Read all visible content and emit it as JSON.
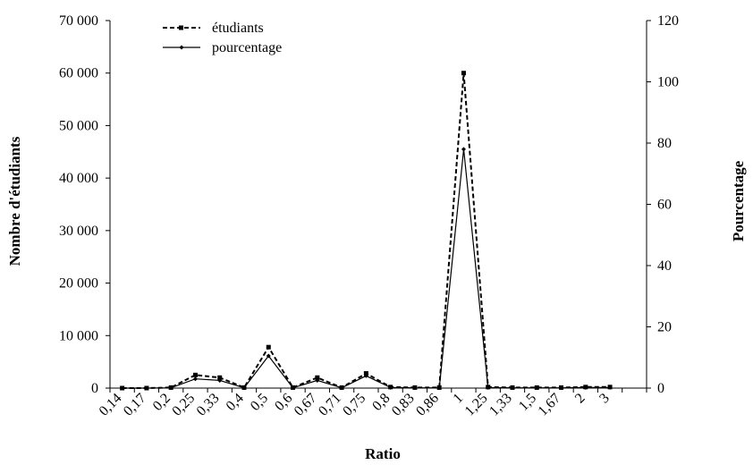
{
  "chart_data": {
    "type": "line",
    "categories": [
      "0,14",
      "0,17",
      "0,2",
      "0,25",
      "0,33",
      "0,4",
      "0,5",
      "0,6",
      "0,67",
      "0,71",
      "0,75",
      "0,8",
      "0,83",
      "0,86",
      "1",
      "1,25",
      "1,33",
      "1,5",
      "1,67",
      "2",
      "3"
    ],
    "xlabel": "Ratio",
    "ylabel_left": "Nombre d'étudiants",
    "ylabel_right": "Pourcentage",
    "ylim_left": [
      0,
      70000
    ],
    "ylim_right": [
      0,
      120
    ],
    "yticks_left": [
      "0",
      "10 000",
      "20 000",
      "30 000",
      "40 000",
      "50 000",
      "60 000",
      "70 000"
    ],
    "yticks_right": [
      "0",
      "20",
      "40",
      "60",
      "80",
      "100",
      "120"
    ],
    "legend_position": "top-left",
    "grid": false,
    "series": [
      {
        "name": "étudiants",
        "axis": "left",
        "style": "dashed",
        "marker": "square",
        "color": "#000000",
        "values": [
          0,
          0,
          100,
          2500,
          2000,
          100,
          7800,
          100,
          2000,
          100,
          2800,
          200,
          100,
          100,
          60000,
          200,
          100,
          100,
          100,
          200,
          200
        ]
      },
      {
        "name": "pourcentage",
        "axis": "right",
        "style": "solid",
        "marker": "diamond",
        "color": "#000000",
        "values": [
          0,
          0,
          0.1,
          3,
          2.5,
          0.1,
          10.5,
          0.1,
          2.5,
          0.1,
          4,
          0.2,
          0.1,
          0.1,
          78,
          0.2,
          0.1,
          0.1,
          0.1,
          0.2,
          0.2
        ]
      }
    ]
  }
}
